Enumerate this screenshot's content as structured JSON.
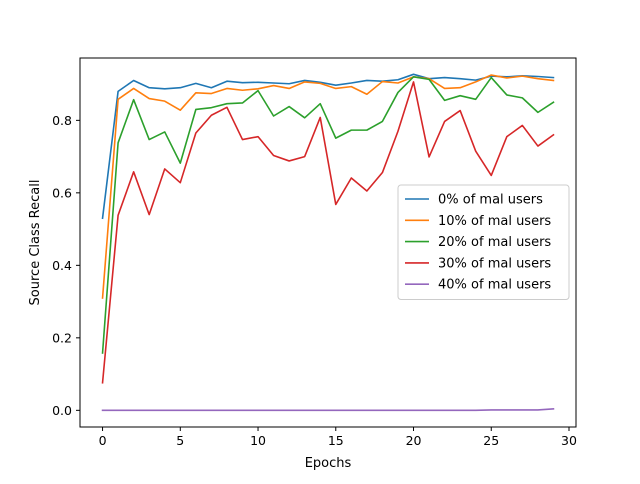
{
  "chart_data": {
    "type": "line",
    "title": "",
    "xlabel": "Epochs",
    "ylabel": "Source Class Recall",
    "xlim": [
      -1.45,
      30.45
    ],
    "ylim": [
      -0.046,
      0.972
    ],
    "xticks": [
      0,
      5,
      10,
      15,
      20,
      25,
      30
    ],
    "xtick_labels": [
      "0",
      "5",
      "10",
      "15",
      "20",
      "25",
      "30"
    ],
    "yticks": [
      0.0,
      0.2,
      0.4,
      0.6,
      0.8
    ],
    "ytick_labels": [
      "0.0",
      "0.2",
      "0.4",
      "0.6",
      "0.8"
    ],
    "grid": false,
    "legend_position": "center-right",
    "x": [
      0,
      1,
      2,
      3,
      4,
      5,
      6,
      7,
      8,
      9,
      10,
      11,
      12,
      13,
      14,
      15,
      16,
      17,
      18,
      19,
      20,
      21,
      22,
      23,
      24,
      25,
      26,
      27,
      28,
      29
    ],
    "series": [
      {
        "name": "0% of mal users",
        "color": "#1f77b4",
        "values": [
          0.53,
          0.88,
          0.91,
          0.89,
          0.887,
          0.89,
          0.902,
          0.89,
          0.908,
          0.904,
          0.905,
          0.903,
          0.901,
          0.91,
          0.905,
          0.897,
          0.903,
          0.91,
          0.908,
          0.912,
          0.927,
          0.915,
          0.918,
          0.915,
          0.911,
          0.922,
          0.92,
          0.923,
          0.921,
          0.918
        ]
      },
      {
        "name": "10% of mal users",
        "color": "#ff7f0e",
        "values": [
          0.31,
          0.858,
          0.888,
          0.86,
          0.853,
          0.828,
          0.876,
          0.874,
          0.888,
          0.883,
          0.887,
          0.896,
          0.888,
          0.906,
          0.902,
          0.888,
          0.893,
          0.872,
          0.907,
          0.903,
          0.92,
          0.915,
          0.888,
          0.89,
          0.906,
          0.925,
          0.917,
          0.922,
          0.915,
          0.91
        ]
      },
      {
        "name": "20% of mal users",
        "color": "#2ca02c",
        "values": [
          0.158,
          0.738,
          0.857,
          0.747,
          0.768,
          0.682,
          0.83,
          0.835,
          0.846,
          0.848,
          0.882,
          0.812,
          0.838,
          0.807,
          0.846,
          0.751,
          0.773,
          0.773,
          0.797,
          0.877,
          0.92,
          0.913,
          0.855,
          0.868,
          0.858,
          0.918,
          0.87,
          0.862,
          0.822,
          0.85
        ]
      },
      {
        "name": "30% of mal users",
        "color": "#d62728",
        "values": [
          0.076,
          0.538,
          0.658,
          0.54,
          0.666,
          0.628,
          0.765,
          0.814,
          0.836,
          0.747,
          0.755,
          0.703,
          0.688,
          0.7,
          0.808,
          0.568,
          0.641,
          0.605,
          0.656,
          0.77,
          0.906,
          0.699,
          0.797,
          0.827,
          0.715,
          0.648,
          0.755,
          0.786,
          0.729,
          0.76
        ]
      },
      {
        "name": "40% of mal users",
        "color": "#9467bd",
        "values": [
          0,
          0,
          0,
          0,
          0,
          0,
          0,
          0,
          0,
          0,
          0,
          0,
          0,
          0,
          0,
          0,
          0,
          0,
          0,
          0,
          0,
          0,
          0,
          0,
          0,
          0.001,
          0.001,
          0.001,
          0.001,
          0.004
        ]
      }
    ]
  }
}
